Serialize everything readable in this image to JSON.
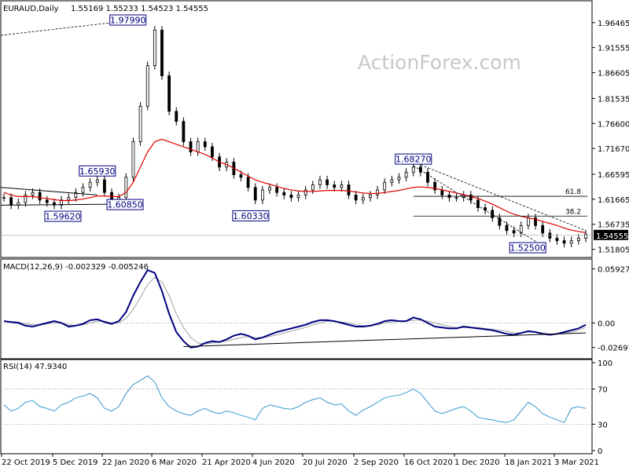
{
  "chart_data": {
    "type": "candlestick",
    "symbol_header": {
      "symbol": "EURAUD,Daily",
      "ohlc": "1.55169 1.55233 1.54523 1.54555"
    },
    "watermark": "ActionForex.com",
    "colors": {
      "candles": "#000000",
      "moving_average": "#e00000",
      "macd_line": "#000080",
      "signal_line": "#a0a0a0",
      "rsi_line": "#3399cc",
      "labels": "#000080"
    },
    "x_axis": {
      "ticks": [
        "22 Oct 2019",
        "5 Dec 2019",
        "22 Jan 2020",
        "6 Mar 2020",
        "21 Apr 2020",
        "4 Jun 2020",
        "20 Jul 2020",
        "2 Sep 2020",
        "16 Oct 2020",
        "1 Dec 2020",
        "18 Jan 2021",
        "3 Mar 2021"
      ]
    },
    "price_panel": {
      "y_ticks": [
        "1.96465",
        "1.91555",
        "1.86605",
        "1.81535",
        "1.76600",
        "1.71670",
        "1.66595",
        "1.61665",
        "1.56735",
        "1.51805"
      ],
      "ylim": [
        1.505,
        2.0
      ],
      "current_price": "1.54555",
      "series_close": [
        1.62,
        1.605,
        1.61,
        1.625,
        1.63,
        1.615,
        1.61,
        1.605,
        1.615,
        1.62,
        1.63,
        1.64,
        1.65,
        1.655,
        1.63,
        1.615,
        1.62,
        1.66,
        1.73,
        1.8,
        1.88,
        1.95,
        1.86,
        1.79,
        1.77,
        1.73,
        1.71,
        1.73,
        1.72,
        1.7,
        1.68,
        1.69,
        1.665,
        1.66,
        1.64,
        1.615,
        1.635,
        1.64,
        1.63,
        1.625,
        1.62,
        1.625,
        1.635,
        1.645,
        1.655,
        1.645,
        1.64,
        1.645,
        1.625,
        1.615,
        1.62,
        1.625,
        1.635,
        1.65,
        1.655,
        1.66,
        1.67,
        1.68,
        1.67,
        1.65,
        1.635,
        1.625,
        1.62,
        1.62,
        1.625,
        1.615,
        1.6,
        1.595,
        1.58,
        1.565,
        1.555,
        1.55,
        1.565,
        1.58,
        1.565,
        1.55,
        1.54,
        1.535,
        1.53,
        1.535,
        1.54,
        1.548
      ],
      "moving_average": [
        1.63,
        1.625,
        1.622,
        1.622,
        1.622,
        1.62,
        1.618,
        1.616,
        1.614,
        1.614,
        1.615,
        1.617,
        1.62,
        1.623,
        1.623,
        1.622,
        1.622,
        1.63,
        1.65,
        1.68,
        1.71,
        1.73,
        1.735,
        1.73,
        1.725,
        1.72,
        1.715,
        1.71,
        1.705,
        1.698,
        1.69,
        1.685,
        1.678,
        1.67,
        1.662,
        1.655,
        1.65,
        1.646,
        1.642,
        1.638,
        1.635,
        1.633,
        1.632,
        1.632,
        1.633,
        1.634,
        1.634,
        1.634,
        1.633,
        1.631,
        1.629,
        1.628,
        1.628,
        1.63,
        1.632,
        1.634,
        1.637,
        1.64,
        1.641,
        1.64,
        1.638,
        1.635,
        1.632,
        1.629,
        1.626,
        1.622,
        1.618,
        1.613,
        1.607,
        1.6,
        1.593,
        1.587,
        1.583,
        1.58,
        1.577,
        1.573,
        1.569,
        1.565,
        1.56,
        1.556,
        1.553,
        1.551
      ],
      "fibonacci": [
        {
          "label": "61.8",
          "value": 1.6225
        },
        {
          "label": "38.2",
          "value": 1.5835
        }
      ],
      "price_labels": [
        {
          "text": "1.97990",
          "value": 1.9799,
          "at": 20
        },
        {
          "text": "1.65930",
          "value": 1.6593,
          "at": 13
        },
        {
          "text": "1.59620",
          "value": 1.5962,
          "at": 7
        },
        {
          "text": "1.60850",
          "value": 1.6085,
          "at": 15
        },
        {
          "text": "1.60330",
          "value": 1.6033,
          "at": 36
        },
        {
          "text": "1.68270",
          "value": 1.6827,
          "at": 57
        },
        {
          "text": "1.52500",
          "value": 1.525,
          "at": 75
        }
      ]
    },
    "macd_panel": {
      "label": "MACD(12,26,9) -0.002329 -0.005246",
      "y_ticks": [
        "0.059272",
        "0.00",
        "-0.026978"
      ],
      "ylim": [
        -0.035,
        0.065
      ],
      "macd": [
        0.002,
        0.001,
        0.0,
        -0.003,
        -0.004,
        -0.002,
        0.0,
        0.002,
        0.0,
        -0.004,
        -0.003,
        -0.001,
        0.003,
        0.004,
        0.001,
        -0.001,
        0.002,
        0.012,
        0.03,
        0.045,
        0.058,
        0.055,
        0.035,
        0.01,
        -0.01,
        -0.02,
        -0.027,
        -0.026,
        -0.022,
        -0.02,
        -0.021,
        -0.018,
        -0.014,
        -0.012,
        -0.014,
        -0.018,
        -0.016,
        -0.013,
        -0.01,
        -0.008,
        -0.006,
        -0.004,
        -0.002,
        0.001,
        0.003,
        0.003,
        0.002,
        0.0,
        -0.002,
        -0.004,
        -0.004,
        -0.003,
        -0.001,
        0.002,
        0.003,
        0.002,
        0.002,
        0.006,
        0.004,
        0.0,
        -0.004,
        -0.005,
        -0.006,
        -0.006,
        -0.004,
        -0.005,
        -0.006,
        -0.007,
        -0.008,
        -0.01,
        -0.012,
        -0.013,
        -0.011,
        -0.009,
        -0.01,
        -0.012,
        -0.013,
        -0.012,
        -0.01,
        -0.008,
        -0.006,
        -0.002
      ],
      "signal": [
        0.002,
        0.0015,
        0.001,
        -0.001,
        -0.002,
        -0.002,
        -0.001,
        0.0,
        0.0,
        -0.002,
        -0.003,
        -0.002,
        0.0,
        0.002,
        0.002,
        0.0,
        0.0,
        0.005,
        0.015,
        0.028,
        0.042,
        0.05,
        0.045,
        0.03,
        0.01,
        -0.005,
        -0.016,
        -0.022,
        -0.023,
        -0.022,
        -0.021,
        -0.02,
        -0.018,
        -0.016,
        -0.015,
        -0.016,
        -0.016,
        -0.015,
        -0.013,
        -0.011,
        -0.009,
        -0.007,
        -0.005,
        -0.002,
        0.0,
        0.002,
        0.002,
        0.001,
        0.0,
        -0.002,
        -0.003,
        -0.003,
        -0.002,
        0.0,
        0.001,
        0.002,
        0.002,
        0.003,
        0.003,
        0.002,
        0.0,
        -0.002,
        -0.004,
        -0.005,
        -0.005,
        -0.005,
        -0.005,
        -0.006,
        -0.007,
        -0.008,
        -0.009,
        -0.011,
        -0.011,
        -0.01,
        -0.01,
        -0.011,
        -0.012,
        -0.012,
        -0.011,
        -0.01,
        -0.008,
        -0.005
      ],
      "trendline": [
        [
          25,
          -0.026
        ],
        [
          81,
          -0.011
        ]
      ]
    },
    "rsi_panel": {
      "label": "RSI(14) 47.9340",
      "y_ticks": [
        "100",
        "70",
        "30",
        "0"
      ],
      "levels": [
        70,
        30
      ],
      "ylim": [
        0,
        100
      ],
      "values": [
        52,
        45,
        48,
        55,
        57,
        50,
        48,
        45,
        52,
        55,
        60,
        62,
        65,
        60,
        48,
        45,
        50,
        65,
        75,
        80,
        85,
        78,
        60,
        50,
        45,
        42,
        40,
        45,
        48,
        44,
        42,
        45,
        43,
        40,
        38,
        35,
        48,
        52,
        50,
        48,
        47,
        50,
        55,
        58,
        60,
        55,
        52,
        53,
        45,
        40,
        46,
        50,
        55,
        60,
        62,
        63,
        66,
        70,
        65,
        55,
        45,
        42,
        45,
        48,
        50,
        45,
        38,
        36,
        35,
        33,
        32,
        35,
        45,
        55,
        50,
        42,
        38,
        35,
        32,
        48,
        50,
        47.934
      ]
    }
  }
}
